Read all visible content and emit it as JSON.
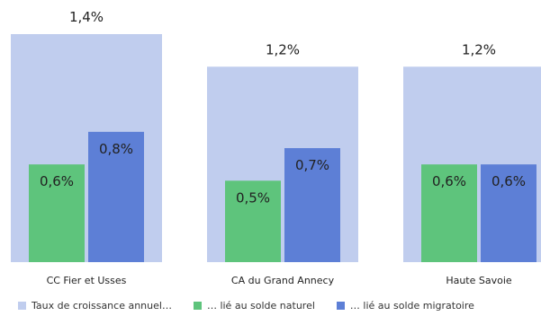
{
  "chart_data": {
    "type": "bar",
    "categories": [
      "CC Fier et Usses",
      "CA du Grand Annecy",
      "Haute Savoie"
    ],
    "series": [
      {
        "name": "Taux de croissance annuel…",
        "values": [
          1.4,
          1.2,
          1.2
        ],
        "labels": [
          "1,4%",
          "1,2%",
          "1,2%"
        ],
        "color": "#c0cdee"
      },
      {
        "name": "… lié au solde naturel",
        "values": [
          0.6,
          0.5,
          0.6
        ],
        "labels": [
          "0,6%",
          "0,5%",
          "0,6%"
        ],
        "color": "#5ec47c"
      },
      {
        "name": "… lié au solde migratoire",
        "values": [
          0.8,
          0.7,
          0.6
        ],
        "labels": [
          "0,8%",
          "0,7%",
          "0,6%"
        ],
        "color": "#5d7fd6"
      }
    ],
    "legend_position": "bottom",
    "grid": false,
    "ylim": [
      0,
      1.4
    ]
  }
}
